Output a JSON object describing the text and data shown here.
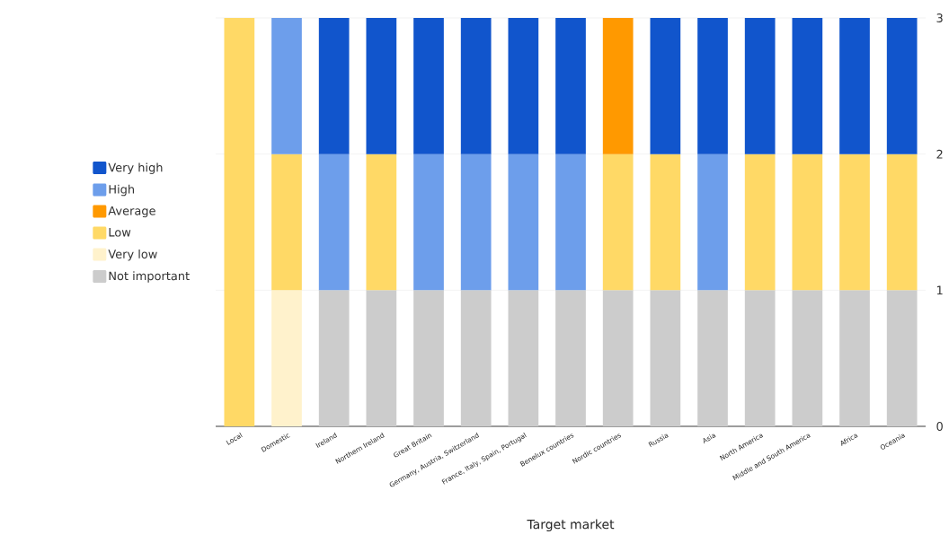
{
  "chart_data": {
    "type": "bar",
    "stacked": true,
    "xlabel": "Target market",
    "categories": [
      "Local",
      "Domestic",
      "Ireland",
      "Northern Ireland",
      "Great Britain",
      "Germany, Austria, Switzerland",
      "France, Italy, Spain, Portugal",
      "Benelux countries",
      "Nordic countries",
      "Russia",
      "Asia",
      "North America",
      "Middle and South America",
      "Africa",
      "Oceania"
    ],
    "series": [
      {
        "name": "Not important",
        "color": "#cccccc",
        "values": [
          null,
          null,
          1,
          1,
          1,
          1,
          1,
          1,
          1,
          1,
          1,
          1,
          1,
          1,
          1
        ]
      },
      {
        "name": "Very low",
        "color": "#fff2cc",
        "values": [
          null,
          1,
          null,
          null,
          null,
          null,
          null,
          null,
          null,
          null,
          null,
          null,
          null,
          null,
          null
        ]
      },
      {
        "name": "Low",
        "color": "#ffd966",
        "values": [
          3,
          1,
          null,
          1,
          null,
          null,
          null,
          null,
          1,
          1,
          null,
          1,
          1,
          1,
          1
        ]
      },
      {
        "name": "Average",
        "color": "#ff9900",
        "values": [
          null,
          null,
          null,
          null,
          null,
          null,
          null,
          null,
          1,
          null,
          null,
          null,
          null,
          null,
          null
        ]
      },
      {
        "name": "High",
        "color": "#6d9eeb",
        "values": [
          null,
          1,
          1,
          null,
          1,
          1,
          1,
          1,
          null,
          null,
          1,
          null,
          null,
          null,
          null
        ]
      },
      {
        "name": "Very high",
        "color": "#1155cc",
        "values": [
          null,
          null,
          1,
          1,
          1,
          1,
          1,
          1,
          null,
          1,
          1,
          1,
          1,
          1,
          1
        ]
      }
    ],
    "ylim": [
      0,
      3
    ],
    "yticks": [
      0,
      1,
      2,
      3
    ],
    "grid": "y",
    "legend": "left"
  }
}
